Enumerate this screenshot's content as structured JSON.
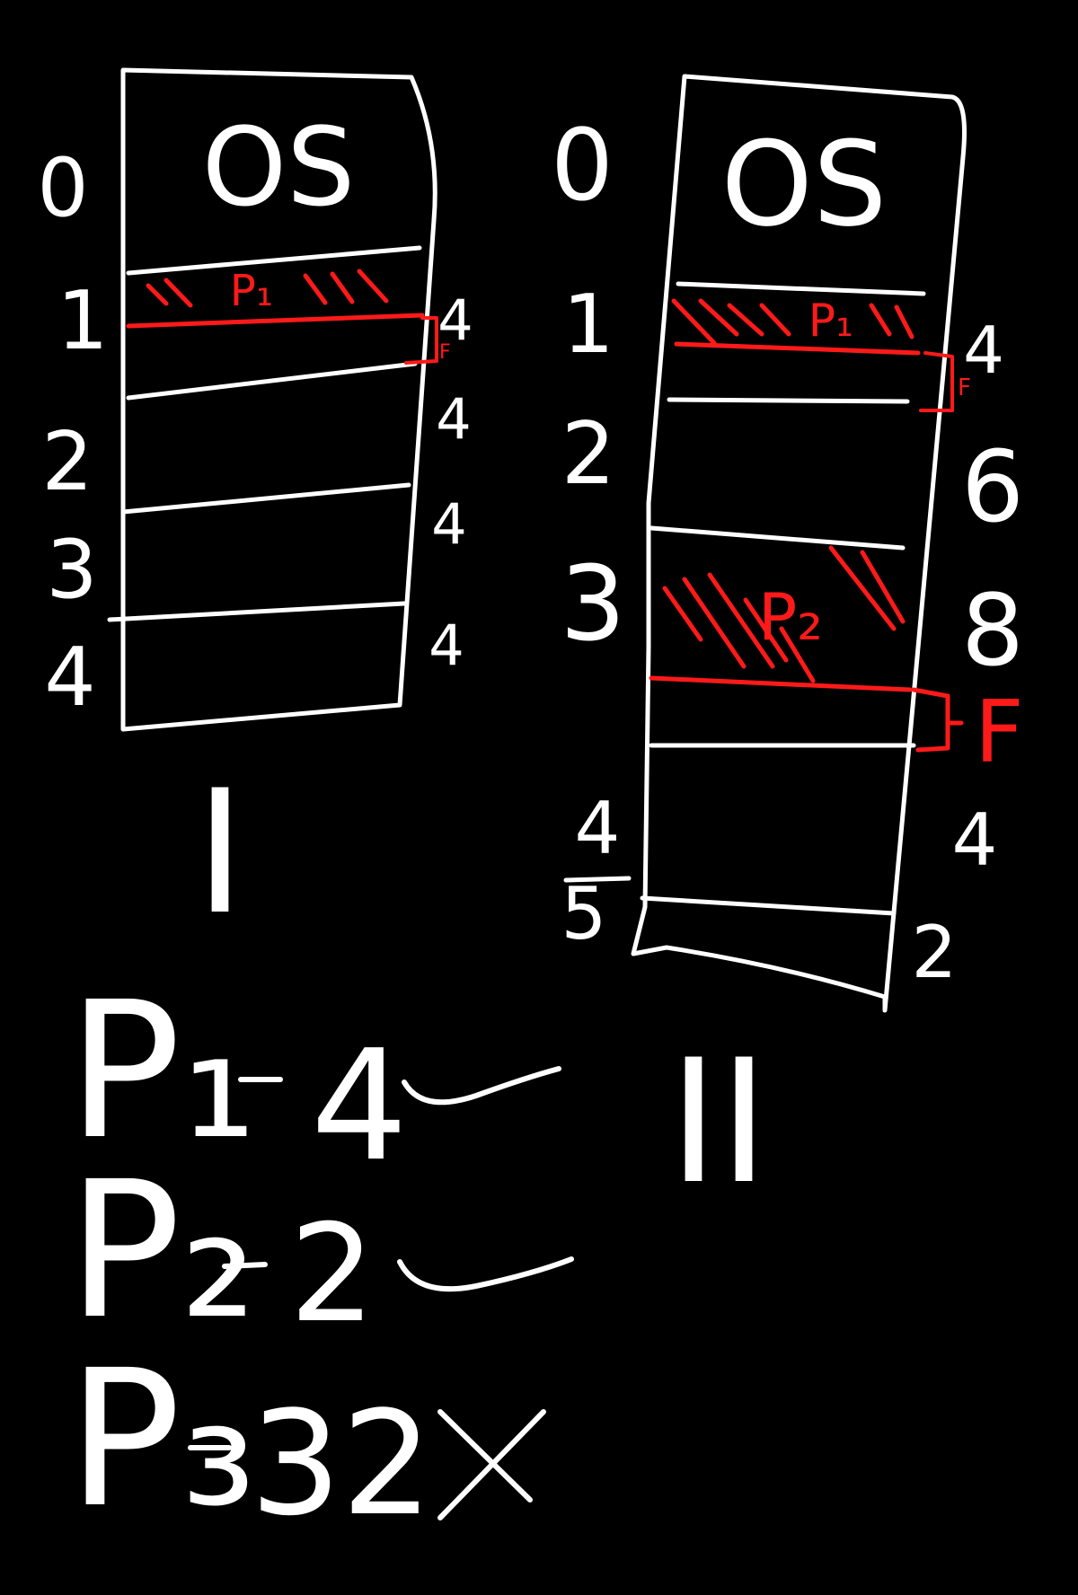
{
  "colors": {
    "background": "#000000",
    "ink": "#ffffff",
    "highlight": "#ff1a1a"
  },
  "diagram_1": {
    "roman": "I",
    "os_label": "OS",
    "process_label": "P₁",
    "frag_label": "F",
    "index_labels": [
      "0",
      "1",
      "2",
      "3",
      "4"
    ],
    "size_labels": [
      "4",
      "4",
      "4",
      "4"
    ]
  },
  "diagram_2": {
    "roman": "II",
    "os_label": "OS",
    "p1_label": "P₁",
    "p2_label": "P₂",
    "frag_label_small": "F",
    "frag_label_large": "F",
    "index_labels": [
      "0",
      "1",
      "2",
      "3",
      "4",
      "5"
    ],
    "size_labels": [
      "4",
      "6",
      "8",
      "4",
      "2"
    ]
  },
  "processes": [
    {
      "name": "P₁",
      "size": "4",
      "result": "check"
    },
    {
      "name": "P₂",
      "size": "2",
      "result": "check"
    },
    {
      "name": "P₃",
      "size": "32",
      "result": "cross"
    }
  ]
}
